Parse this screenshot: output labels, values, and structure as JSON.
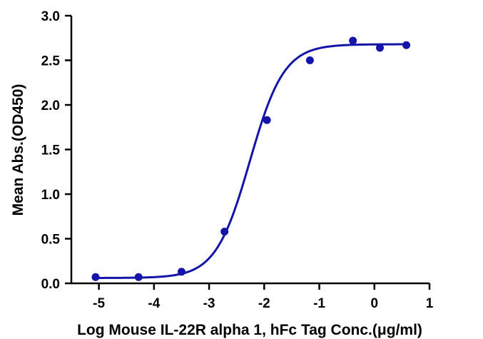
{
  "chart_data": {
    "type": "scatter",
    "title": "",
    "xlabel": "Log Mouse IL-22R alpha 1, hFc Tag Conc.(μg/ml)",
    "ylabel": "Mean Abs.(OD450)",
    "xlim": [
      -5.5,
      1
    ],
    "ylim": [
      0,
      3.0
    ],
    "x_ticks": [
      -5,
      -4,
      -3,
      -2,
      -1,
      0,
      1
    ],
    "y_ticks": [
      0.0,
      0.5,
      1.0,
      1.5,
      2.0,
      2.5,
      3.0
    ],
    "x_tick_labels": [
      "-5",
      "-4",
      "-3",
      "-2",
      "-1",
      "0",
      "1"
    ],
    "y_tick_labels": [
      "0.0",
      "0.5",
      "1.0",
      "1.5",
      "2.0",
      "2.5",
      "3.0"
    ],
    "grid": false,
    "legend": "none",
    "series": [
      {
        "points": [
          {
            "x": -5.06,
            "y": 0.07
          },
          {
            "x": -4.28,
            "y": 0.07
          },
          {
            "x": -3.5,
            "y": 0.13
          },
          {
            "x": -2.72,
            "y": 0.58
          },
          {
            "x": -1.95,
            "y": 1.83
          },
          {
            "x": -1.17,
            "y": 2.5
          },
          {
            "x": -0.39,
            "y": 2.72
          },
          {
            "x": 0.1,
            "y": 2.64
          },
          {
            "x": 0.58,
            "y": 2.67
          }
        ],
        "fit": {
          "model": "four-parameter logistic",
          "bottom": 0.06,
          "top": 2.68,
          "log_ec50": -2.26,
          "hill_slope": 1.4
        }
      }
    ],
    "colors": {
      "series": "#1414a8",
      "axis": "#000000"
    }
  }
}
